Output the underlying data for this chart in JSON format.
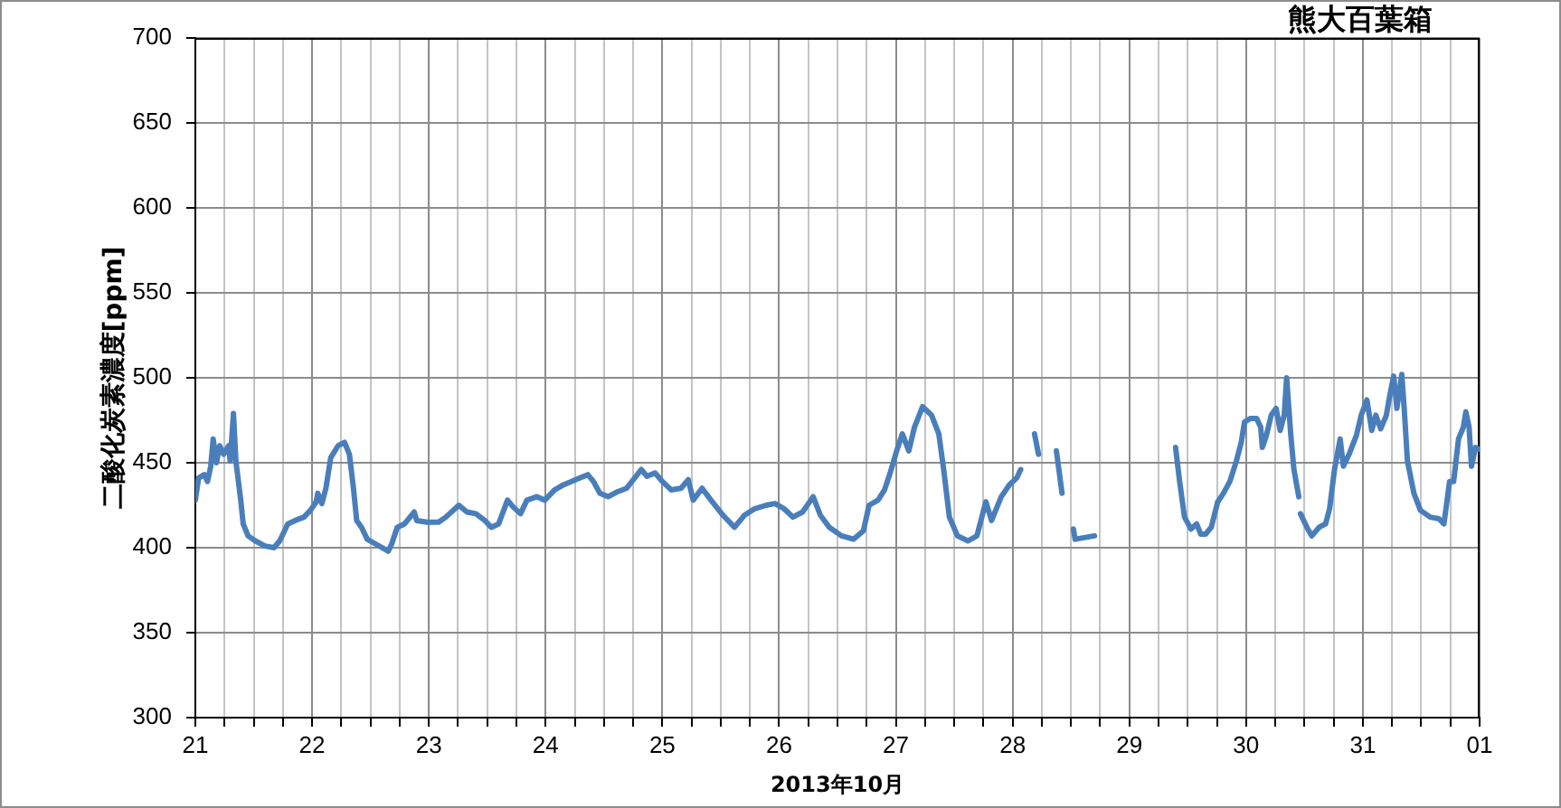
{
  "chart_data": {
    "type": "line",
    "title": "熊大百葉箱",
    "xlabel": "2013年10月",
    "ylabel": "二酸化炭素濃度[ppm]",
    "color": "#4a7ebb",
    "marker": "none",
    "grid": true,
    "ylim": [
      300,
      700
    ],
    "yticks": [
      300,
      350,
      400,
      450,
      500,
      550,
      600,
      650,
      700
    ],
    "xlim": [
      "2013-10-21",
      "2013-11-01"
    ],
    "xticks": [
      {
        "value": "2013-10-21",
        "label": "21"
      },
      {
        "value": "2013-10-21T06:00",
        "label": null
      },
      {
        "value": "2013-10-21T12:00",
        "label": null
      },
      {
        "value": "2013-10-21T18:00",
        "label": null
      },
      {
        "value": "2013-10-22",
        "label": "22"
      },
      {
        "value": "2013-10-22T06:00",
        "label": null
      },
      {
        "value": "2013-10-22T12:00",
        "label": null
      },
      {
        "value": "2013-10-22T18:00",
        "label": null
      },
      {
        "value": "2013-10-23",
        "label": "23"
      },
      {
        "value": "2013-10-23T06:00",
        "label": null
      },
      {
        "value": "2013-10-23T12:00",
        "label": null
      },
      {
        "value": "2013-10-23T18:00",
        "label": null
      },
      {
        "value": "2013-10-24",
        "label": "24"
      },
      {
        "value": "2013-10-24T06:00",
        "label": null
      },
      {
        "value": "2013-10-24T12:00",
        "label": null
      },
      {
        "value": "2013-10-24T18:00",
        "label": null
      },
      {
        "value": "2013-10-25",
        "label": "25"
      },
      {
        "value": "2013-10-25T06:00",
        "label": null
      },
      {
        "value": "2013-10-25T12:00",
        "label": null
      },
      {
        "value": "2013-10-25T18:00",
        "label": null
      },
      {
        "value": "2013-10-26",
        "label": "26"
      },
      {
        "value": "2013-10-26T06:00",
        "label": null
      },
      {
        "value": "2013-10-26T12:00",
        "label": null
      },
      {
        "value": "2013-10-26T18:00",
        "label": null
      },
      {
        "value": "2013-10-27",
        "label": "27"
      },
      {
        "value": "2013-10-27T06:00",
        "label": null
      },
      {
        "value": "2013-10-27T12:00",
        "label": null
      },
      {
        "value": "2013-10-27T18:00",
        "label": null
      },
      {
        "value": "2013-10-28",
        "label": "28"
      },
      {
        "value": "2013-10-28T06:00",
        "label": null
      },
      {
        "value": "2013-10-28T12:00",
        "label": null
      },
      {
        "value": "2013-10-28T18:00",
        "label": null
      },
      {
        "value": "2013-10-29",
        "label": "29"
      },
      {
        "value": "2013-10-29T06:00",
        "label": null
      },
      {
        "value": "2013-10-29T12:00",
        "label": null
      },
      {
        "value": "2013-10-29T18:00",
        "label": null
      },
      {
        "value": "2013-10-30",
        "label": "30"
      },
      {
        "value": "2013-10-30T06:00",
        "label": null
      },
      {
        "value": "2013-10-30T12:00",
        "label": null
      },
      {
        "value": "2013-10-30T18:00",
        "label": null
      },
      {
        "value": "2013-10-31",
        "label": "31"
      },
      {
        "value": "2013-10-31T06:00",
        "label": null
      },
      {
        "value": "2013-10-31T12:00",
        "label": null
      },
      {
        "value": "2013-10-31T18:00",
        "label": null
      },
      {
        "value": "2013-11-01",
        "label": "01"
      }
    ],
    "x": [
      "2013-10-21T00:00",
      "2013-10-21T00:40",
      "2013-10-21T01:50",
      "2013-10-21T02:30",
      "2013-10-21T03:10",
      "2013-10-21T03:40",
      "2013-10-21T04:20",
      "2013-10-21T05:00",
      "2013-10-21T05:50",
      "2013-10-21T06:50",
      "2013-10-21T07:10",
      "2013-10-21T07:50",
      "2013-10-21T08:20",
      "2013-10-21T09:20",
      "2013-10-21T09:50",
      "2013-10-21T10:50",
      "2013-10-21T12:20",
      "2013-10-21T14:20",
      "2013-10-21T16:10",
      "2013-10-21T17:20",
      "2013-10-21T19:00",
      "2013-10-21T20:30",
      "2013-10-21T22:20",
      "2013-10-21T23:40",
      "2013-10-22T00:50",
      "2013-10-22T01:10",
      "2013-10-22T02:00",
      "2013-10-22T02:50",
      "2013-10-22T03:50",
      "2013-10-22T05:20",
      "2013-10-22T06:40",
      "2013-10-22T07:40",
      "2013-10-22T08:30",
      "2013-10-22T09:10",
      "2013-10-22T10:10",
      "2013-10-22T11:20",
      "2013-10-22T13:10",
      "2013-10-22T15:40",
      "2013-10-22T16:20",
      "2013-10-22T17:30",
      "2013-10-22T19:00",
      "2013-10-22T21:00",
      "2013-10-22T21:30",
      "2013-10-22T23:40",
      "2013-10-23T02:00",
      "2013-10-23T03:30",
      "2013-10-23T06:10",
      "2013-10-23T07:50",
      "2013-10-23T09:40",
      "2013-10-23T11:30",
      "2013-10-23T12:50",
      "2013-10-23T14:20",
      "2013-10-23T16:10",
      "2013-10-23T17:20",
      "2013-10-23T18:50",
      "2013-10-23T20:10",
      "2013-10-23T22:10",
      "2013-10-23T23:50",
      "2013-10-24T01:50",
      "2013-10-24T03:40",
      "2013-10-24T06:10",
      "2013-10-24T08:40",
      "2013-10-24T09:50",
      "2013-10-24T11:10",
      "2013-10-24T12:50",
      "2013-10-24T14:50",
      "2013-10-24T16:40",
      "2013-10-24T19:40",
      "2013-10-24T20:50",
      "2013-10-24T22:30",
      "2013-10-25T00:00",
      "2013-10-25T01:50",
      "2013-10-25T03:50",
      "2013-10-25T05:20",
      "2013-10-25T06:20",
      "2013-10-25T08:10",
      "2013-10-25T10:00",
      "2013-10-25T12:30",
      "2013-10-25T14:50",
      "2013-10-25T16:50",
      "2013-10-25T19:00",
      "2013-10-25T21:20",
      "2013-10-25T23:10",
      "2013-10-26T01:00",
      "2013-10-26T02:50",
      "2013-10-26T04:50",
      "2013-10-26T07:00",
      "2013-10-26T08:30",
      "2013-10-26T10:20",
      "2013-10-26T12:50",
      "2013-10-26T15:20",
      "2013-10-26T17:20",
      "2013-10-26T18:30",
      "2013-10-26T20:20",
      "2013-10-26T21:40",
      "2013-10-26T22:50",
      "2013-10-27T00:10",
      "2013-10-27T01:20",
      "2013-10-27T02:40",
      "2013-10-27T03:50",
      "2013-10-27T05:30",
      "2013-10-27T07:20",
      "2013-10-27T08:50",
      "2013-10-27T09:50",
      "2013-10-27T11:00",
      "2013-10-27T12:40",
      "2013-10-27T14:50",
      "2013-10-27T16:40",
      "2013-10-27T18:30",
      "2013-10-27T19:40",
      "2013-10-27T21:40",
      "2013-10-27T23:20",
      "2013-10-28T00:50",
      "2013-10-28T01:40",
      "2013-10-28T03:00",
      "2013-10-28T04:30",
      "2013-10-28T05:20",
      "2013-10-28T07:00",
      "2013-10-28T09:00",
      "2013-10-28T10:10",
      "2013-10-28T11:30",
      "2013-10-28T12:30",
      "2013-10-28T12:50",
      "2013-10-28T16:50",
      "2013-10-29T01:00",
      "2013-10-29T09:30",
      "2013-10-29T10:20",
      "2013-10-29T11:20",
      "2013-10-29T12:40",
      "2013-10-29T13:50",
      "2013-10-29T14:40",
      "2013-10-29T15:40",
      "2013-10-29T16:50",
      "2013-10-29T18:10",
      "2013-10-29T19:20",
      "2013-10-29T20:40",
      "2013-10-29T22:00",
      "2013-10-29T23:00",
      "2013-10-29T23:40",
      "2013-10-30T00:50",
      "2013-10-30T02:10",
      "2013-10-30T03:00",
      "2013-10-30T03:20",
      "2013-10-30T04:10",
      "2013-10-30T05:10",
      "2013-10-30T06:10",
      "2013-10-30T07:00",
      "2013-10-30T07:50",
      "2013-10-30T08:20",
      "2013-10-30T09:10",
      "2013-10-30T09:50",
      "2013-10-30T10:50",
      "2013-10-30T11:00",
      "2013-10-30T11:10",
      "2013-10-30T12:40",
      "2013-10-30T13:30",
      "2013-10-30T15:00",
      "2013-10-30T16:20",
      "2013-10-30T17:10",
      "2013-10-30T18:10",
      "2013-10-30T19:20",
      "2013-10-30T20:00",
      "2013-10-30T21:10",
      "2013-10-30T22:40",
      "2013-10-30T23:40",
      "2013-10-31T00:50",
      "2013-10-31T01:50",
      "2013-10-31T02:40",
      "2013-10-31T03:40",
      "2013-10-31T04:50",
      "2013-10-31T05:30",
      "2013-10-31T06:20",
      "2013-10-31T07:00",
      "2013-10-31T08:00",
      "2013-10-31T08:30",
      "2013-10-31T09:10",
      "2013-10-31T10:30",
      "2013-10-31T11:50",
      "2013-10-31T13:50",
      "2013-10-31T15:40",
      "2013-10-31T16:40",
      "2013-10-31T17:50",
      "2013-10-31T18:40",
      "2013-10-31T19:40",
      "2013-10-31T20:40",
      "2013-10-31T21:10",
      "2013-10-31T21:50",
      "2013-10-31T22:20",
      "2013-10-31T23:10",
      "2013-10-31T23:50"
    ],
    "values": [
      428,
      441,
      443,
      439,
      448,
      464,
      450,
      460,
      455,
      460,
      451,
      479,
      451,
      428,
      414,
      407,
      404,
      401,
      400,
      404,
      414,
      416,
      418,
      422,
      427,
      432,
      426,
      435,
      453,
      460,
      462,
      455,
      435,
      416,
      412,
      405,
      402,
      398,
      402,
      412,
      414,
      421,
      416,
      415,
      415,
      418,
      425,
      421,
      420,
      416,
      412,
      414,
      428,
      424,
      420,
      428,
      430,
      428,
      434,
      437,
      440,
      443,
      439,
      432,
      430,
      433,
      435,
      446,
      442,
      444,
      439,
      434,
      435,
      440,
      428,
      435,
      428,
      419,
      412,
      419,
      423,
      425,
      426,
      423,
      418,
      421,
      430,
      419,
      412,
      407,
      405,
      410,
      425,
      428,
      434,
      444,
      457,
      467,
      457,
      471,
      483,
      478,
      467,
      446,
      418,
      407,
      404,
      407,
      427,
      416,
      430,
      437,
      441,
      446,
      null,
      467,
      455,
      null,
      457,
      432,
      null,
      411,
      405,
      407,
      null,
      459,
      439,
      418,
      411,
      414,
      408,
      408,
      412,
      427,
      432,
      439,
      451,
      462,
      474,
      476,
      476,
      471,
      459,
      466,
      478,
      482,
      469,
      478,
      500,
      467,
      446,
      430,
      null,
      420,
      411,
      407,
      412,
      414,
      423,
      446,
      464,
      448,
      455,
      466,
      478,
      487,
      469,
      478,
      470,
      478,
      489,
      501,
      482,
      502,
      482,
      451,
      432,
      422,
      418,
      417,
      414,
      439,
      439,
      464,
      471,
      480,
      471,
      448,
      459,
      458
    ]
  }
}
